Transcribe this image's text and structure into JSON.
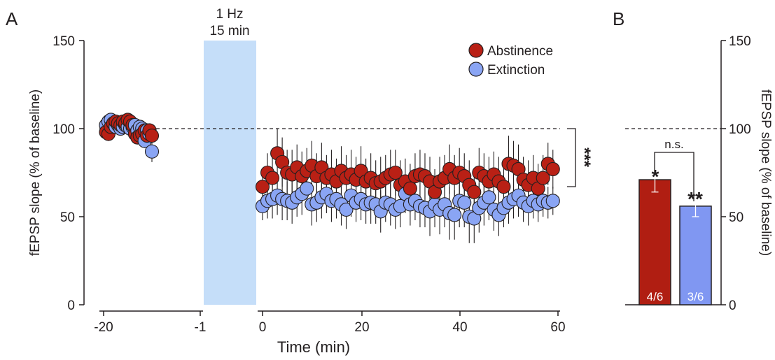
{
  "panels": {
    "a_label": "A",
    "b_label": "B"
  },
  "stimulus": {
    "line1": "1 Hz",
    "line2": "15 min",
    "color": "#c5def9"
  },
  "significance": {
    "main_effect": "***",
    "bar_a": "*",
    "bar_b": "**",
    "between_bars": "n.s."
  },
  "colors": {
    "abstinence": "#b92015",
    "extinction": "#8aa5f4",
    "abstinence_bar": "#b01e12",
    "extinction_bar": "#8097f2"
  },
  "chart_data": [
    {
      "type": "scatter",
      "title": "",
      "xlabel": "Time (min)",
      "ylabel": "fEPSP slope (% of baseline)",
      "ylim": [
        0,
        150
      ],
      "x_ticks": [
        "-20",
        "-1",
        "0",
        "20",
        "40",
        "60"
      ],
      "y_ticks": [
        "0",
        "50",
        "100",
        "150"
      ],
      "reference_line": 100,
      "legend_position": "top-right",
      "stimulation_window": "1 Hz, 15 min",
      "series": [
        {
          "name": "Abstinence",
          "baseline_x": [
            -19.5,
            -19,
            -18.5,
            -18,
            -17.5,
            -17,
            -16.5,
            -16,
            -15.5,
            -15,
            -14.5,
            -14,
            -13.5,
            -13,
            -12.5,
            -12,
            -11.5,
            -11,
            -10.5,
            -10
          ],
          "baseline_y": [
            98,
            97,
            101,
            103,
            104,
            103,
            102,
            104,
            103,
            105,
            104,
            102,
            97,
            95,
            96,
            97,
            99,
            96,
            99,
            96
          ],
          "baseline_err": [
            4,
            4,
            4,
            3,
            3,
            3,
            3,
            3,
            3,
            3,
            3,
            3,
            4,
            4,
            4,
            4,
            4,
            4,
            4,
            4
          ],
          "post_x": [
            0,
            1,
            2,
            3,
            4,
            5,
            6,
            7,
            8,
            9,
            10,
            11,
            12,
            13,
            14,
            15,
            16,
            17,
            18,
            19,
            20,
            21,
            22,
            23,
            24,
            25,
            26,
            27,
            28,
            29,
            30,
            31,
            32,
            33,
            34,
            35,
            36,
            37,
            38,
            39,
            40,
            41,
            42,
            43,
            44,
            45,
            46,
            47,
            48,
            49,
            50,
            51,
            52,
            53,
            54,
            55,
            56,
            57,
            58,
            59
          ],
          "post_y": [
            67,
            75,
            72,
            86,
            81,
            75,
            74,
            78,
            73,
            76,
            79,
            73,
            78,
            72,
            74,
            70,
            76,
            72,
            74,
            71,
            76,
            70,
            72,
            69,
            70,
            72,
            74,
            75,
            68,
            70,
            66,
            73,
            74,
            73,
            70,
            64,
            70,
            72,
            77,
            72,
            75,
            73,
            68,
            64,
            75,
            73,
            70,
            74,
            70,
            67,
            80,
            79,
            77,
            71,
            68,
            72,
            66,
            72,
            80,
            77
          ],
          "post_err": [
            9,
            11,
            12,
            14,
            14,
            13,
            14,
            13,
            14,
            13,
            14,
            13,
            14,
            13,
            14,
            13,
            14,
            13,
            14,
            13,
            14,
            13,
            14,
            13,
            14,
            13,
            14,
            13,
            14,
            13,
            14,
            13,
            14,
            13,
            14,
            13,
            14,
            13,
            14,
            13,
            14,
            13,
            14,
            13,
            14,
            13,
            14,
            13,
            14,
            13,
            16,
            14,
            14,
            13,
            14,
            13,
            14,
            13,
            12,
            11
          ]
        },
        {
          "name": "Extinction",
          "baseline_x": [
            -19.5,
            -19,
            -18.5,
            -18,
            -17.5,
            -17,
            -16.5,
            -16,
            -15.5,
            -15,
            -14.5,
            -14,
            -13.5,
            -13,
            -12.5,
            -12,
            -11.5,
            -11,
            -10.5,
            -10
          ],
          "baseline_y": [
            102,
            104,
            105,
            103,
            101,
            102,
            100,
            101,
            102,
            101,
            100,
            101,
            102,
            99,
            101,
            100,
            93,
            99,
            97,
            87
          ],
          "baseline_err": [
            3,
            3,
            3,
            3,
            3,
            3,
            3,
            3,
            3,
            3,
            3,
            3,
            3,
            3,
            3,
            3,
            4,
            4,
            5,
            6
          ],
          "post_x": [
            0,
            1,
            2,
            3,
            4,
            5,
            6,
            7,
            8,
            9,
            10,
            11,
            12,
            13,
            14,
            15,
            16,
            17,
            18,
            19,
            20,
            21,
            22,
            23,
            24,
            25,
            26,
            27,
            28,
            29,
            30,
            31,
            32,
            33,
            34,
            35,
            36,
            37,
            38,
            39,
            40,
            41,
            42,
            43,
            44,
            45,
            46,
            47,
            48,
            49,
            50,
            51,
            52,
            53,
            54,
            55,
            56,
            57,
            58,
            59
          ],
          "post_y": [
            56,
            59,
            60,
            62,
            60,
            59,
            58,
            61,
            63,
            66,
            57,
            58,
            61,
            63,
            59,
            60,
            57,
            54,
            62,
            58,
            60,
            57,
            58,
            57,
            53,
            58,
            57,
            54,
            56,
            63,
            57,
            59,
            56,
            55,
            53,
            57,
            54,
            57,
            52,
            51,
            59,
            58,
            50,
            49,
            55,
            58,
            61,
            54,
            51,
            55,
            58,
            60,
            62,
            58,
            56,
            59,
            57,
            59,
            58,
            59
          ],
          "post_err": [
            8,
            10,
            11,
            11,
            12,
            11,
            12,
            11,
            12,
            12,
            12,
            11,
            12,
            11,
            12,
            11,
            12,
            11,
            12,
            11,
            12,
            11,
            12,
            11,
            12,
            11,
            12,
            11,
            12,
            11,
            12,
            11,
            12,
            11,
            14,
            13,
            14,
            13,
            15,
            14,
            15,
            14,
            15,
            14,
            14,
            13,
            13,
            12,
            12,
            11,
            12,
            11,
            12,
            11,
            11,
            10,
            10,
            9,
            9,
            8
          ]
        }
      ]
    },
    {
      "type": "bar",
      "title": "",
      "xlabel": "",
      "ylabel": "fEPSP slope (% of baseline)",
      "ylim": [
        0,
        150
      ],
      "y_ticks": [
        "0",
        "50",
        "100",
        "150"
      ],
      "reference_line": 100,
      "categories": [
        "Abstinence",
        "Extinction"
      ],
      "values": [
        71,
        56
      ],
      "errors": [
        7,
        6
      ],
      "bar_labels": [
        "4/6",
        "3/6"
      ]
    }
  ]
}
